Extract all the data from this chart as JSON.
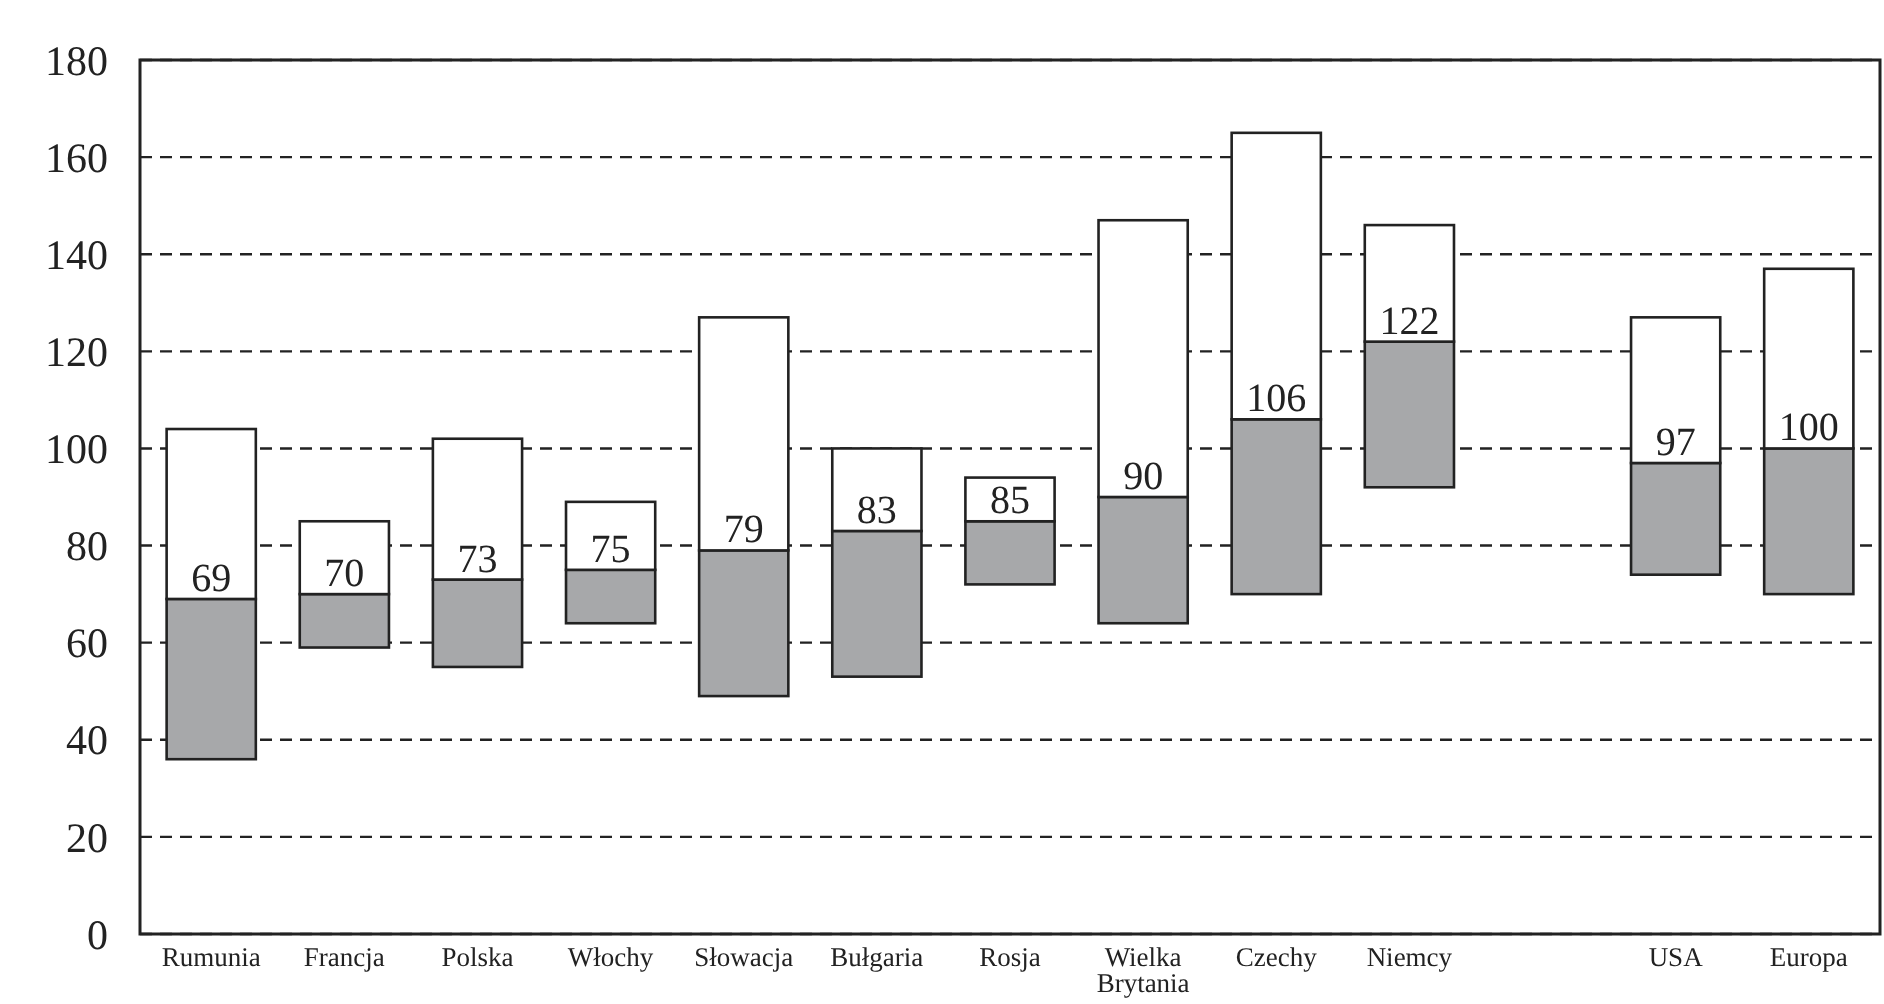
{
  "chart_data": {
    "type": "bar",
    "categories": [
      "Rumunia",
      "Francja",
      "Polska",
      "Włochy",
      "Słowacja",
      "Bułgaria",
      "Rosja",
      "Wielka Brytania",
      "Czechy",
      "Niemcy",
      null,
      "USA",
      "Europa"
    ],
    "series": [
      {
        "color": "#a7a8aa",
        "base": [
          36,
          59,
          55,
          64,
          49,
          53,
          72,
          64,
          70,
          92,
          null,
          74,
          70
        ],
        "values": [
          33,
          11,
          18,
          11,
          30,
          30,
          13,
          26,
          36,
          30,
          null,
          23,
          30
        ]
      },
      {
        "color": "#ffffff",
        "base": [
          69,
          70,
          73,
          75,
          79,
          83,
          85,
          90,
          106,
          122,
          null,
          97,
          100
        ],
        "values": [
          35,
          15,
          29,
          14,
          48,
          17,
          9,
          57,
          59,
          24,
          null,
          30,
          37
        ]
      }
    ],
    "annotations": [
      {
        "text": "69",
        "x": "Rumunia",
        "y": 69
      },
      {
        "text": "70",
        "x": "Francja",
        "y": 70
      },
      {
        "text": "73",
        "x": "Polska",
        "y": 73
      },
      {
        "text": "75",
        "x": "Włochy",
        "y": 75
      },
      {
        "text": "79",
        "x": "Słowacja",
        "y": 79
      },
      {
        "text": "83",
        "x": "Bułgaria",
        "y": 83
      },
      {
        "text": "85",
        "x": "Rosja",
        "y": 85
      },
      {
        "text": "90",
        "x": "Wielka Brytania",
        "y": 90
      },
      {
        "text": "106",
        "x": "Czechy",
        "y": 106
      },
      {
        "text": "122",
        "x": "Niemcy",
        "y": 122
      },
      {
        "text": "97",
        "x": "USA",
        "y": 97
      },
      {
        "text": "100",
        "x": "Europa",
        "y": 100
      }
    ],
    "ylim": [
      0,
      180
    ],
    "yticks": [
      0,
      20,
      40,
      60,
      80,
      100,
      120,
      140,
      160,
      180
    ],
    "grid": "y",
    "line_style": "dashed"
  }
}
